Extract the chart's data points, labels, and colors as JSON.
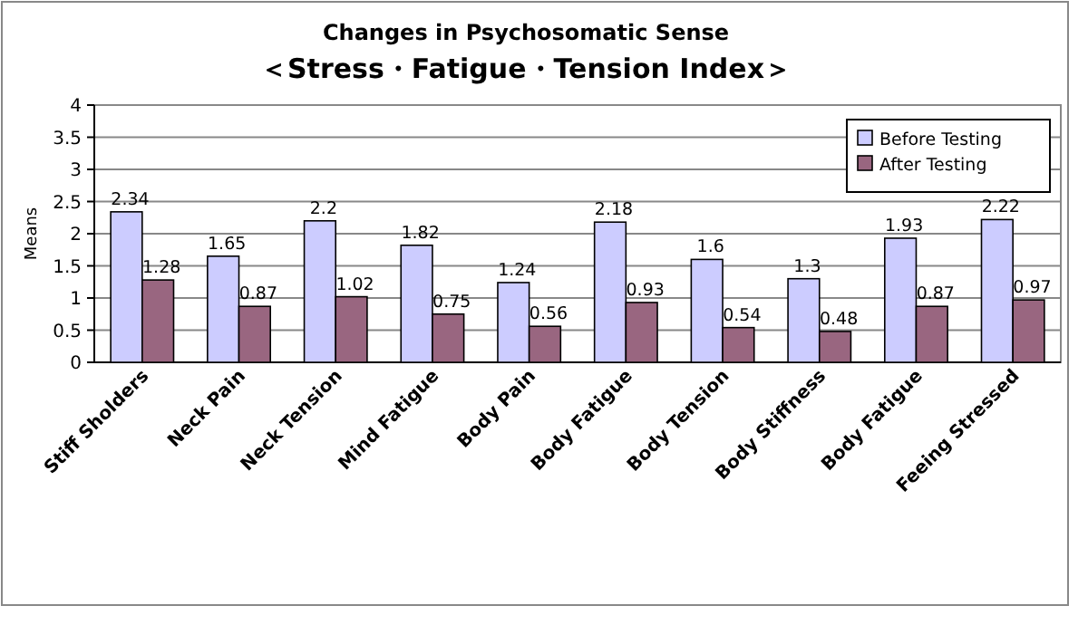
{
  "chart_data": {
    "type": "bar",
    "title": "Changes in Psychosomatic Sense",
    "subtitle": "＜Stress・Fatigue・Tension Index＞",
    "ylabel": "Means",
    "categories": [
      "Stiff Sholders",
      "Neck Pain",
      "Neck Tension",
      "Mind Fatigue",
      "Body Pain",
      "Body Fatigue",
      "Body Tension",
      "Body Stiffness",
      "Body Fatigue",
      "Feeing Stressed"
    ],
    "series": [
      {
        "name": "Before Testing",
        "color": "#ccccff",
        "values": [
          2.34,
          1.65,
          2.2,
          1.82,
          1.24,
          2.18,
          1.6,
          1.3,
          1.93,
          2.22
        ]
      },
      {
        "name": "After Testing",
        "color": "#996680",
        "values": [
          1.28,
          0.87,
          1.02,
          0.75,
          0.56,
          0.93,
          0.54,
          0.48,
          0.87,
          0.97
        ]
      }
    ],
    "ylim": [
      0,
      4
    ],
    "yticks": [
      0,
      0.5,
      1,
      1.5,
      2,
      2.5,
      3,
      3.5,
      4
    ],
    "grid": "y",
    "legend": "top right",
    "data_labels": true
  }
}
